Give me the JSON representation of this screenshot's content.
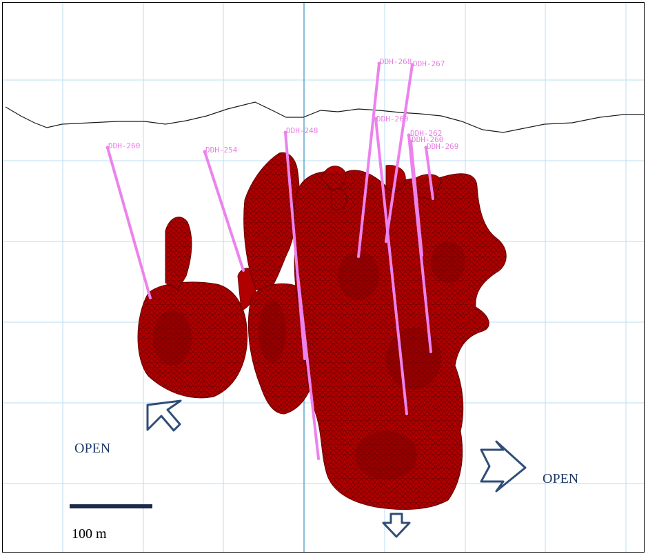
{
  "drill_holes": [
    {
      "id": "DDH-260"
    },
    {
      "id": "DDH-254"
    },
    {
      "id": "DDH-248"
    },
    {
      "id": "DDH-268"
    },
    {
      "id": "DDH-267"
    },
    {
      "id": "DDH-260"
    },
    {
      "id": "DDH-262"
    },
    {
      "id": "DDH-260"
    },
    {
      "id": "DDH-269"
    }
  ],
  "annotations": {
    "open_left": "OPEN",
    "open_right": "OPEN"
  },
  "scale_bar": {
    "label": "100 m"
  },
  "colors": {
    "grid": "#b9dcf3",
    "orebody": "#b00000",
    "mesh": "#3a0000",
    "drill": "#ec82ec",
    "arrow": "#2f4d78",
    "topography": "#1a1a1a"
  }
}
